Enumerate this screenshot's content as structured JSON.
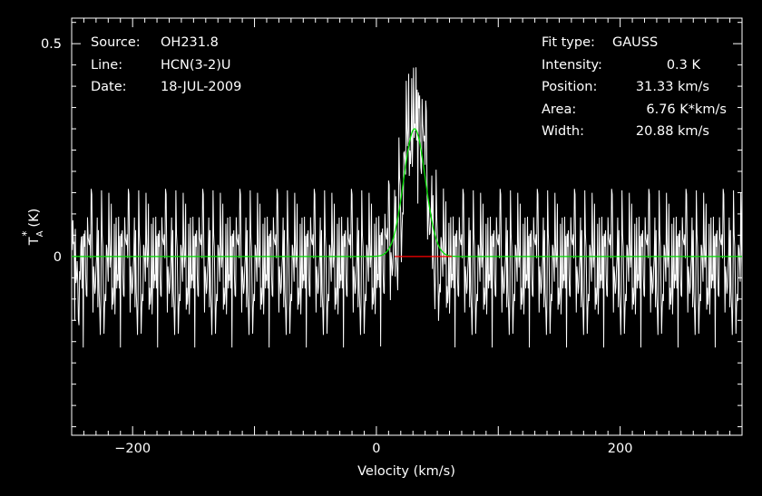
{
  "colors": {
    "background": "#000000",
    "foreground": "#ffffff",
    "fit": "#00e000",
    "fit_window": "#ff0000"
  },
  "header_left": {
    "source_label": "Source:",
    "source_value": "OH231.8",
    "line_label": "Line:",
    "line_value": "HCN(3-2)U",
    "date_label": "Date:",
    "date_value": "18-JUL-2009"
  },
  "header_right": {
    "fit_type_label": "Fit type:",
    "fit_type_value": "GAUSS",
    "intensity_label": "Intensity:",
    "intensity_value": "0.3 K",
    "position_label": "Position:",
    "position_value": "31.33 km/s",
    "area_label": "Area:",
    "area_value": "6.76 K*km/s",
    "width_label": "Width:",
    "width_value": "20.88 km/s"
  },
  "chart_data": {
    "type": "line",
    "xlabel": "Velocity (km/s)",
    "ylabel": "T",
    "ylabel_sub": "A",
    "ylabel_sup": "*",
    "ylabel_unit": "(K)",
    "xlim": [
      -250,
      300
    ],
    "ylim": [
      -0.42,
      0.56
    ],
    "x_ticks": [
      -200,
      0,
      200
    ],
    "x_tick_labels": [
      "−200",
      "0",
      "200"
    ],
    "y_ticks": [
      0,
      0.5
    ],
    "y_tick_labels": [
      "0",
      "0.5"
    ],
    "grid": false,
    "spectrum": {
      "x_start": -250,
      "x_end": 300,
      "channel_width": 0.5,
      "rms": 0.09
    },
    "fit": {
      "type": "GAUSS",
      "amplitude": 0.3,
      "center": 31.33,
      "fwhm": 20.88,
      "area": 6.76
    },
    "fit_window": [
      15,
      62
    ]
  }
}
